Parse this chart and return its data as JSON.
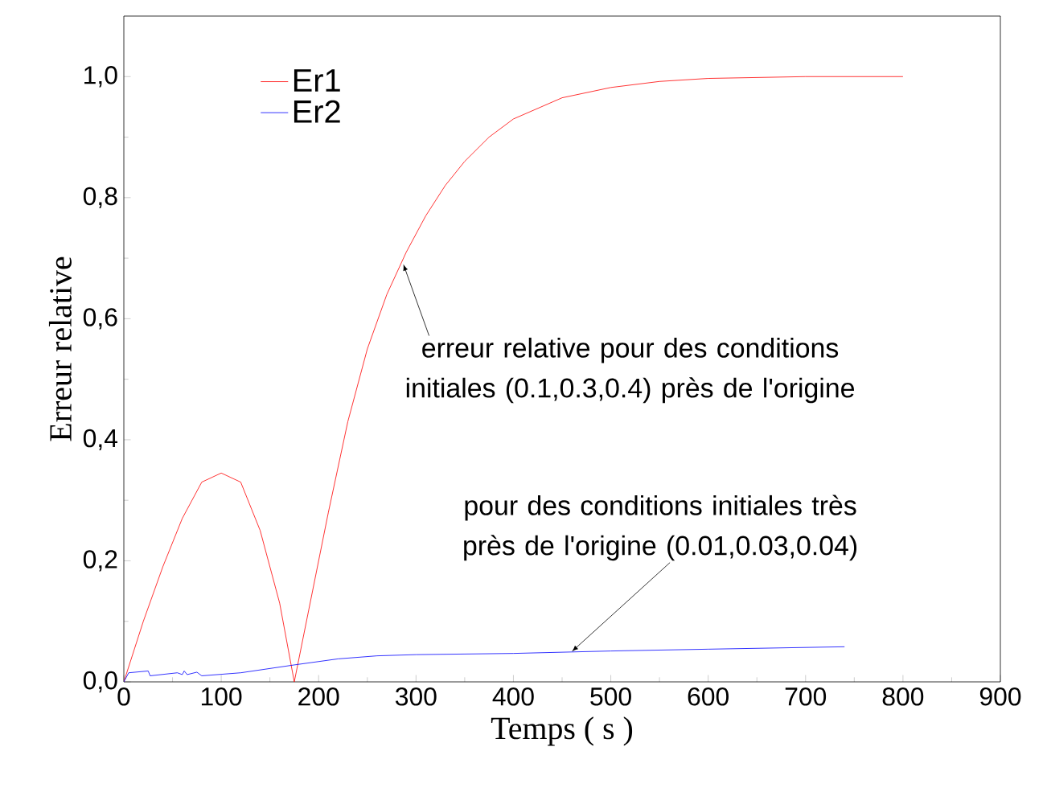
{
  "chart_data": {
    "type": "line",
    "xlabel": "Temps ( s )",
    "ylabel": "Erreur relative",
    "xlim": [
      0,
      900
    ],
    "ylim": [
      0,
      1.1
    ],
    "xticks": [
      0,
      100,
      200,
      300,
      400,
      500,
      600,
      700,
      800,
      900
    ],
    "yticks": [
      {
        "value": 0,
        "label": "0,0"
      },
      {
        "value": 0.2,
        "label": "0,2"
      },
      {
        "value": 0.4,
        "label": "0,4"
      },
      {
        "value": 0.6,
        "label": "0,6"
      },
      {
        "value": 0.8,
        "label": "0,8"
      },
      {
        "value": 1.0,
        "label": "1,0"
      }
    ],
    "legend": "top left",
    "grid": false,
    "marker": "none",
    "line_style": "solid",
    "series": [
      {
        "name": "Er1",
        "color": "#ff0000",
        "x": [
          0,
          20,
          40,
          60,
          80,
          100,
          120,
          140,
          160,
          175,
          190,
          210,
          230,
          250,
          270,
          290,
          310,
          330,
          350,
          375,
          400,
          450,
          500,
          550,
          600,
          700,
          800
        ],
        "values": [
          0,
          0.1,
          0.19,
          0.27,
          0.33,
          0.345,
          0.33,
          0.25,
          0.13,
          0,
          0.12,
          0.28,
          0.43,
          0.55,
          0.64,
          0.71,
          0.77,
          0.82,
          0.86,
          0.9,
          0.93,
          0.965,
          0.982,
          0.992,
          0.997,
          1.0,
          1.0
        ]
      },
      {
        "name": "Er2",
        "color": "#0000ff",
        "x": [
          0,
          5,
          25,
          27,
          55,
          60,
          62,
          65,
          75,
          80,
          120,
          175,
          220,
          260,
          300,
          400,
          500,
          600,
          740
        ],
        "values": [
          0,
          0.015,
          0.018,
          0.01,
          0.015,
          0.012,
          0.018,
          0.012,
          0.016,
          0.01,
          0.015,
          0.028,
          0.038,
          0.043,
          0.045,
          0.047,
          0.051,
          0.054,
          0.058
        ]
      }
    ],
    "annotations": [
      {
        "text": "erreur relative pour des conditions initiales (0.1,0.3,0.4) près de l'origine",
        "x": 287,
        "y": 0.69
      },
      {
        "text": "pour des conditions initiales très près de l'origine (0.01,0.03,0.04)",
        "x": 460,
        "y": 0.05
      }
    ]
  }
}
